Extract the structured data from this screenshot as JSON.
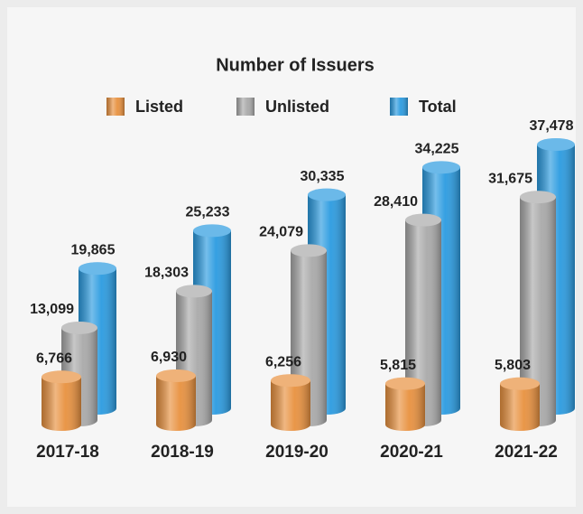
{
  "chart_data": {
    "type": "bar",
    "title": "Number of Issuers",
    "categories": [
      "2017-18",
      "2018-19",
      "2019-20",
      "2020-21",
      "2021-22"
    ],
    "series": [
      {
        "name": "Listed",
        "color": "#e8913f",
        "values": [
          6766,
          6930,
          6256,
          5815,
          5803
        ],
        "value_labels": [
          "6,766",
          "6,930",
          "6,256",
          "5,815",
          "5,803"
        ]
      },
      {
        "name": "Unlisted",
        "color": "#a9a9a9",
        "values": [
          13099,
          18303,
          24079,
          28410,
          31675
        ],
        "value_labels": [
          "13,099",
          "18,303",
          "24,079",
          "28,410",
          "31,675"
        ]
      },
      {
        "name": "Total",
        "color": "#2b9be0",
        "values": [
          19865,
          25233,
          30335,
          34225,
          37478
        ],
        "value_labels": [
          "19,865",
          "25,233",
          "30,335",
          "34,225",
          "37,478"
        ]
      }
    ]
  }
}
